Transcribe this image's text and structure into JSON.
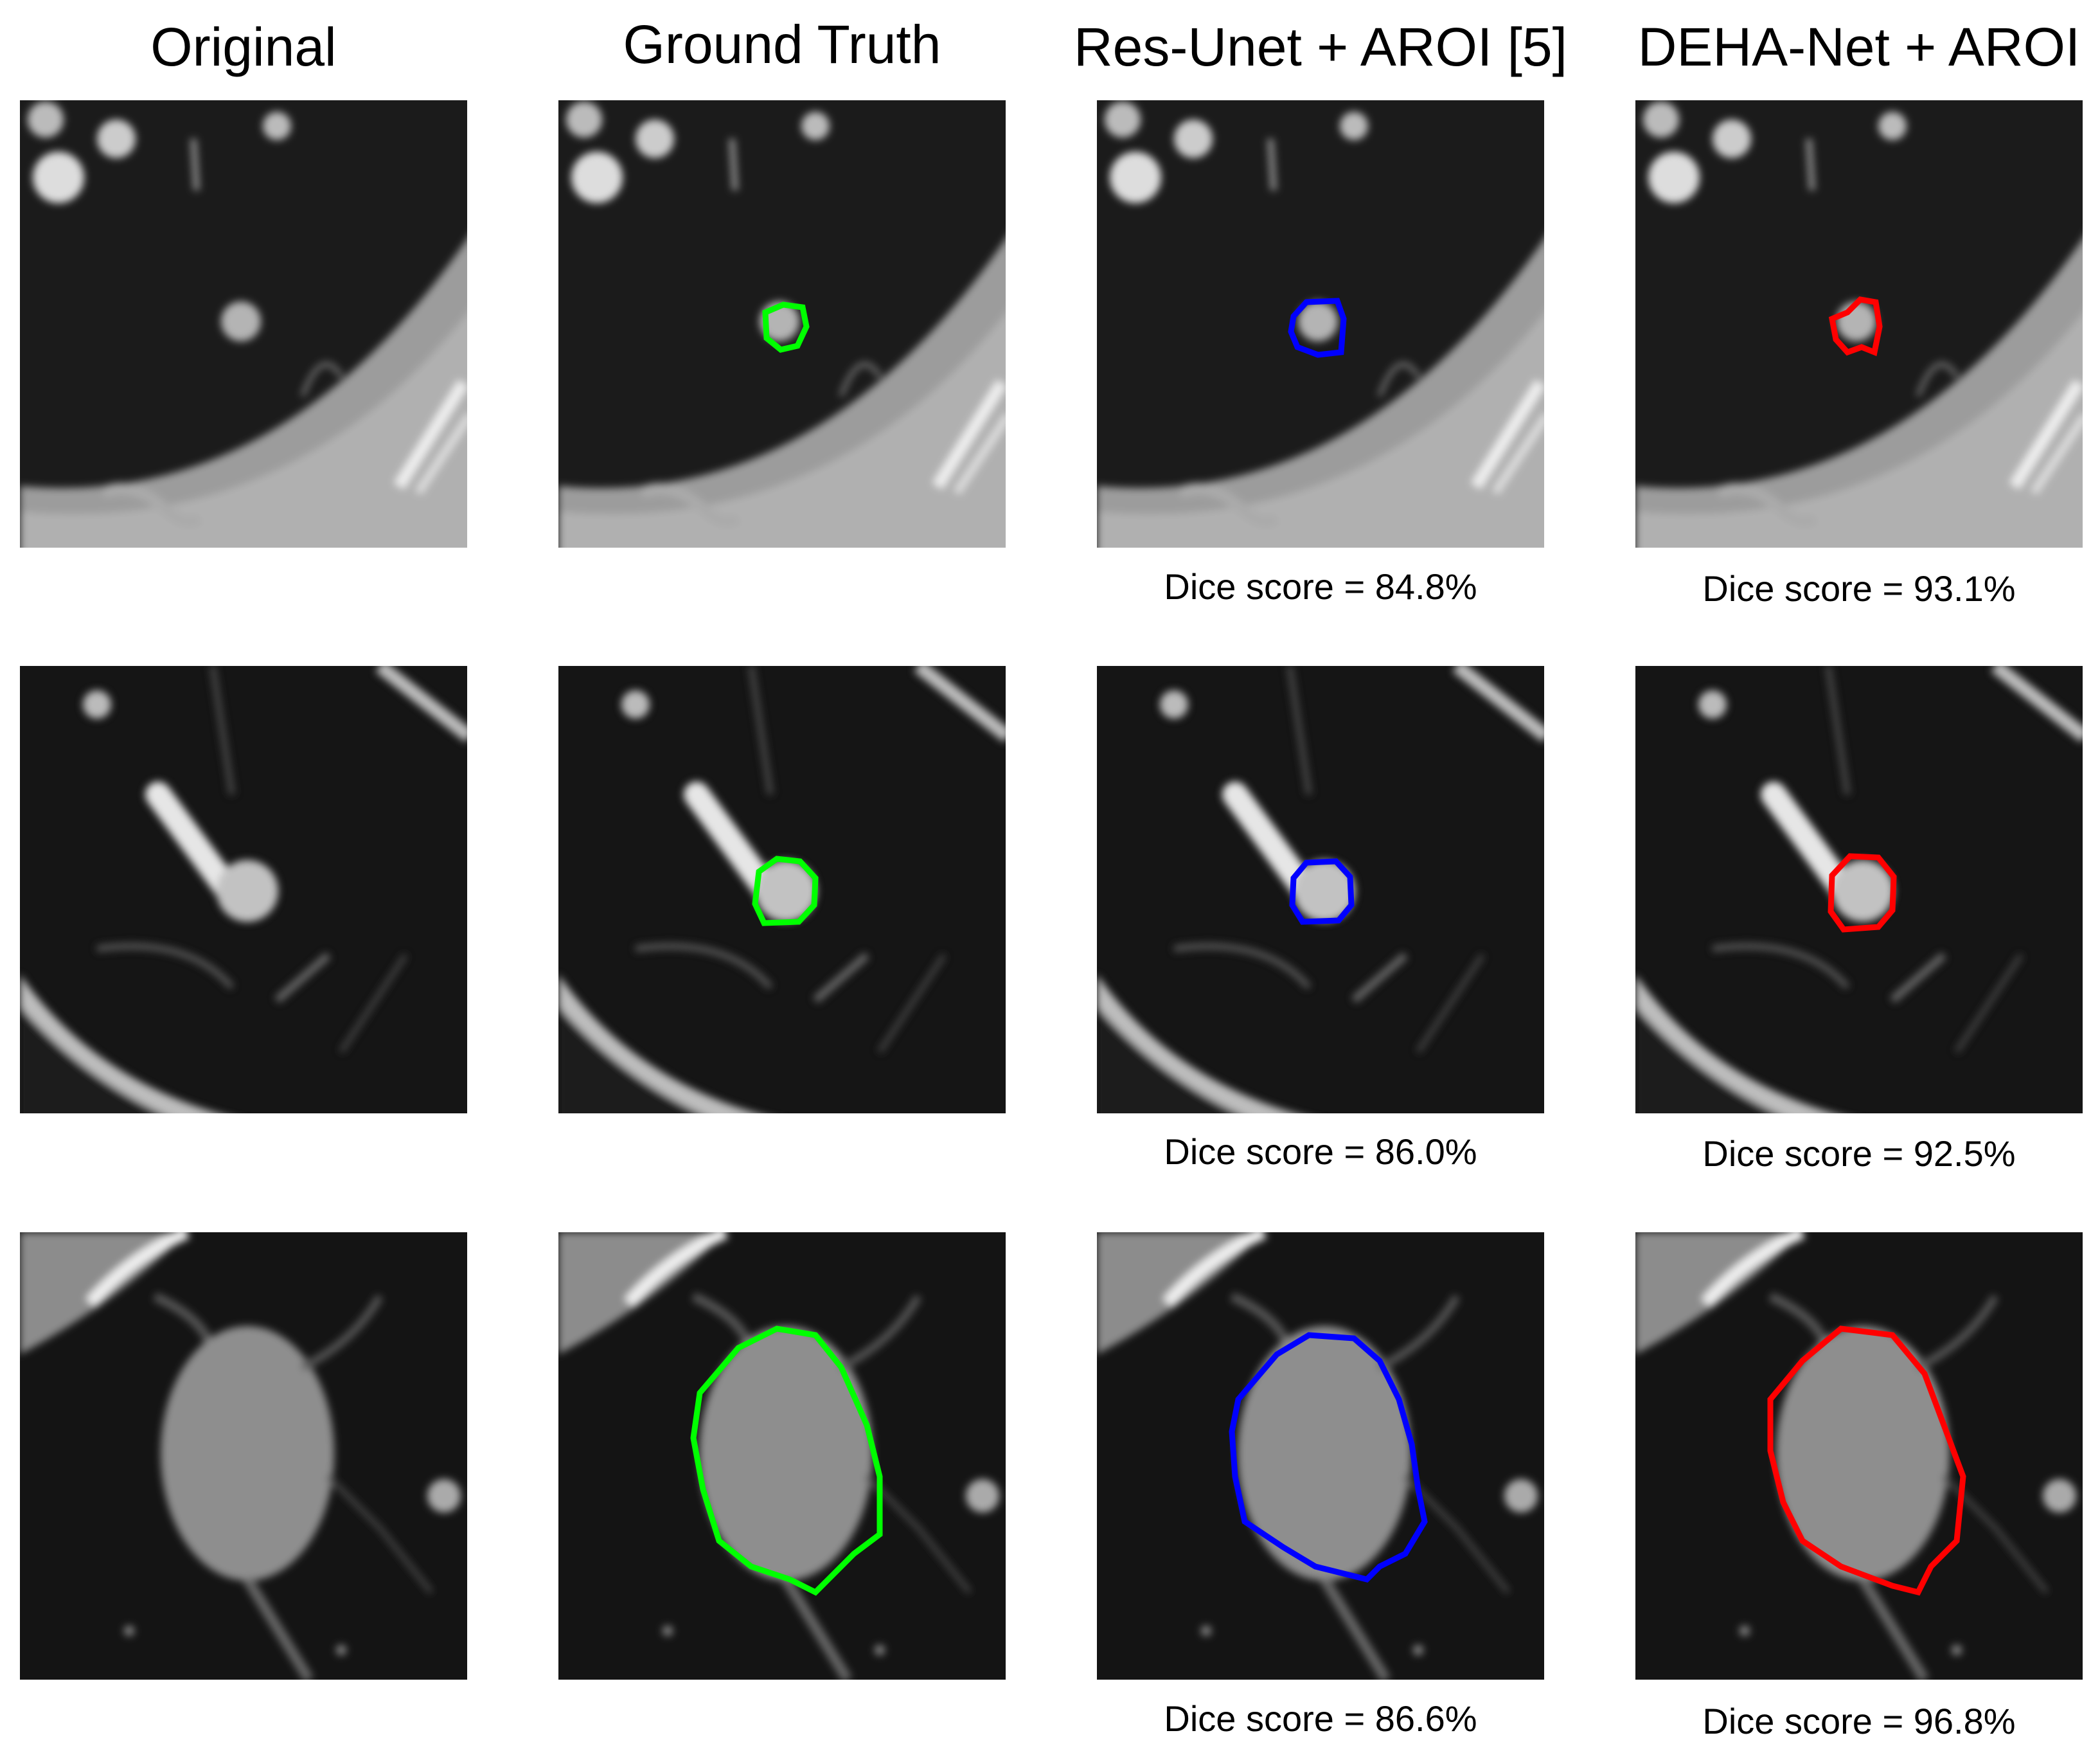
{
  "columns": [
    "Original",
    "Ground Truth",
    "Res-Unet + AROI [5]",
    "DEHA-Net + AROI"
  ],
  "rows": [
    {
      "res_unet_dice": "Dice score = 84.8%",
      "deha_net_dice": "Dice score = 93.1%"
    },
    {
      "res_unet_dice": "Dice score = 86.0%",
      "deha_net_dice": "Dice score = 92.5%"
    },
    {
      "res_unet_dice": "Dice score = 86.6%",
      "deha_net_dice": "Dice score = 96.8%"
    }
  ]
}
